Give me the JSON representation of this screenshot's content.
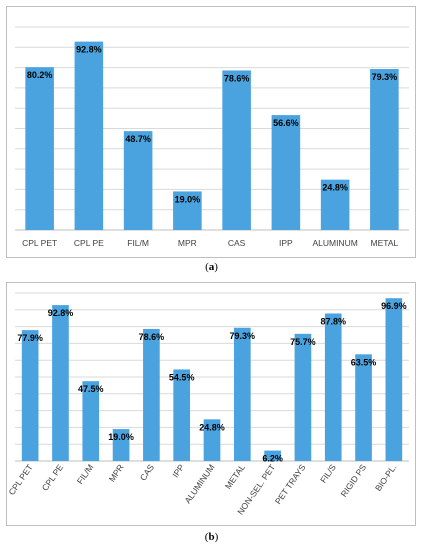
{
  "captions": {
    "a": "a",
    "b": "b"
  },
  "chart_data": [
    {
      "type": "bar",
      "categories": [
        "CPL PET",
        "CPL PE",
        "FIL/M",
        "MPR",
        "CAS",
        "IPP",
        "ALUMINUM",
        "METAL"
      ],
      "values": [
        80.2,
        92.8,
        48.7,
        19.0,
        78.6,
        56.6,
        24.8,
        79.3
      ],
      "data_labels": [
        "80.2%",
        "92.8%",
        "48.7%",
        "19.0%",
        "78.6%",
        "56.6%",
        "24.8%",
        "79.3%"
      ],
      "title": "",
      "xlabel": "",
      "ylabel": "",
      "ylim": [
        0,
        100
      ],
      "grid": true,
      "legend": "none",
      "color": "#4aa3df"
    },
    {
      "type": "bar",
      "categories": [
        "CPL PET",
        "CPL PE",
        "FIL/M",
        "MPR",
        "CAS",
        "IPP",
        "ALUMINUM",
        "METAL",
        "NON-SEL. PET",
        "PET TRAYS",
        "FIL/S",
        "RIGID PS",
        "BIO-PL."
      ],
      "values": [
        77.9,
        92.8,
        47.5,
        19.0,
        78.6,
        54.5,
        24.8,
        79.3,
        6.2,
        75.7,
        87.8,
        63.5,
        96.9
      ],
      "data_labels": [
        "77.9%",
        "92.8%",
        "47.5%",
        "19.0%",
        "78.6%",
        "54.5%",
        "24.8%",
        "79.3%",
        "6.2%",
        "75.7%",
        "87.8%",
        "63.5%",
        "96.9%"
      ],
      "title": "",
      "xlabel": "",
      "ylabel": "",
      "ylim": [
        0,
        100
      ],
      "grid": true,
      "legend": "none",
      "color": "#4aa3df"
    }
  ]
}
